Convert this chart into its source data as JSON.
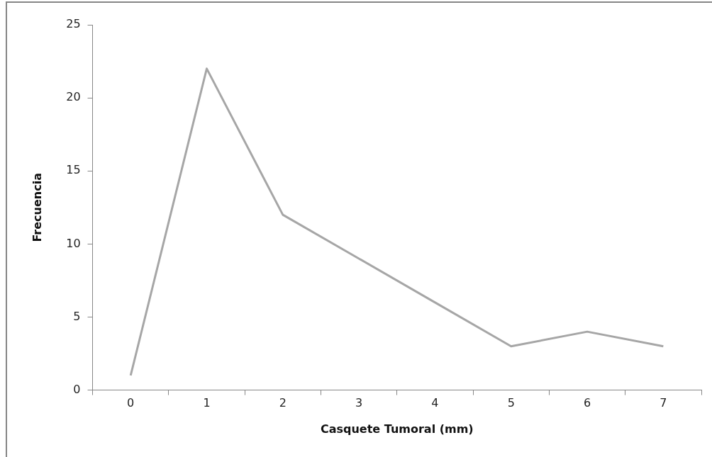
{
  "chart_data": {
    "type": "line",
    "xlabel": "Casquete Tumoral (mm)",
    "ylabel": "Frecuencia",
    "categories": [
      "0",
      "1",
      "2",
      "3",
      "4",
      "5",
      "6",
      "7"
    ],
    "series": [
      {
        "color": "#a6a6a6",
        "values": [
          1,
          22,
          12,
          9,
          6,
          3,
          4,
          3
        ]
      }
    ],
    "ylim": [
      0,
      25
    ],
    "yticks": [
      0,
      5,
      10,
      15,
      20,
      25
    ],
    "marker": "none",
    "line_style": "solid"
  }
}
